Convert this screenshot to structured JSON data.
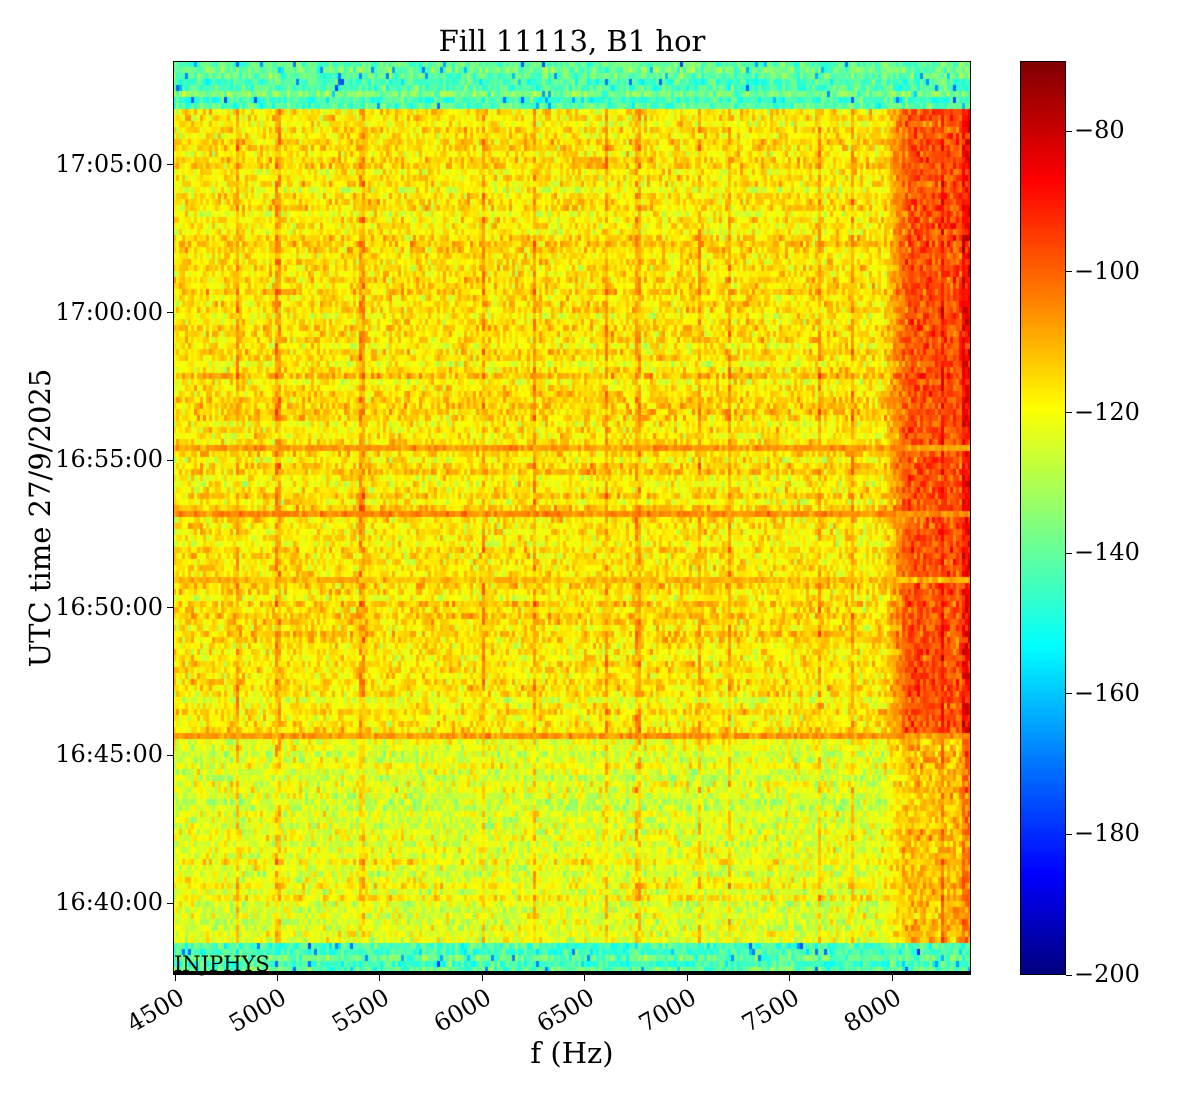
{
  "chart_data": {
    "type": "heatmap",
    "title": "Fill 11113, B1 hor",
    "xlabel": "f (Hz)",
    "ylabel": "UTC time 27/9/2025",
    "xlim": [
      4490,
      8385
    ],
    "ylim": [
      "16:37:34",
      "17:08:31"
    ],
    "x_ticks": [
      4500,
      5000,
      5500,
      6000,
      6500,
      7000,
      7500,
      8000
    ],
    "x_tick_labels": [
      "4500",
      "5000",
      "5500",
      "6000",
      "6500",
      "7000",
      "7500",
      "8000"
    ],
    "y_ticks": [
      "16:40:00",
      "16:45:00",
      "16:50:00",
      "16:55:00",
      "17:00:00",
      "17:05:00"
    ],
    "colormap": "jet",
    "clim": [
      -200,
      -70
    ],
    "colorbar_ticks": [
      -80,
      -100,
      -120,
      -140,
      -160,
      -180,
      -200
    ],
    "colorbar_tick_labels": [
      "−80",
      "−100",
      "−120",
      "−140",
      "−160",
      "−180",
      "−200"
    ],
    "annotation": "INJPHYS",
    "background_level": -140,
    "regions": [
      {
        "t_start": "16:37:34",
        "t_end": "16:38:40",
        "level": -140
      },
      {
        "t_start": "16:38:40",
        "t_end": "16:45:45",
        "level": -122
      },
      {
        "t_start": "16:45:45",
        "t_end": "17:06:50",
        "level": -116
      },
      {
        "t_start": "17:06:50",
        "t_end": "17:08:31",
        "level": -140
      }
    ],
    "high_band": {
      "f_start": 7950,
      "f_end": 8385,
      "level": -92
    },
    "horizontal_lines": [
      {
        "t": "16:45:45",
        "level": -106
      },
      {
        "t": "16:50:55",
        "level": -110
      },
      {
        "t": "16:53:15",
        "level": -104
      },
      {
        "t": "16:55:30",
        "level": -106
      }
    ],
    "vertical_lines_hz": [
      4800,
      4995,
      5405,
      6000,
      6245,
      6600,
      6750,
      7055,
      7200,
      7640,
      7800,
      8240
    ],
    "grid": false
  }
}
